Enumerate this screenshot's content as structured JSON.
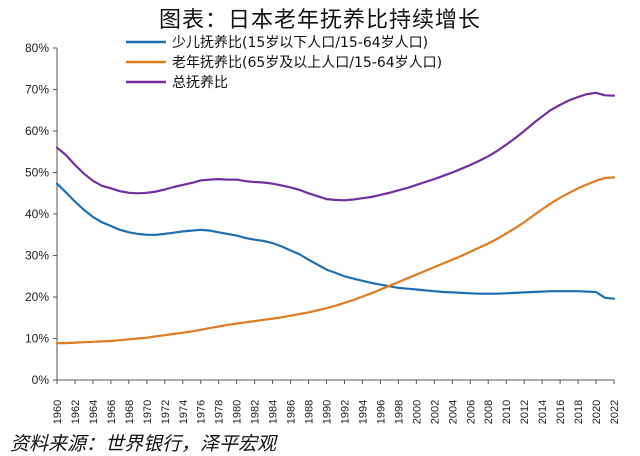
{
  "title": "图表：日本老年抚养比持续增长",
  "source": "资料来源：世界银行，泽平宏观",
  "chart_data": {
    "type": "line",
    "title": "图表：日本老年抚养比持续增长",
    "xlabel": "",
    "ylabel": "",
    "ylim": [
      0,
      80
    ],
    "yticks": [
      "0%",
      "10%",
      "20%",
      "30%",
      "40%",
      "50%",
      "60%",
      "70%",
      "80%"
    ],
    "xlim": [
      1960,
      2022
    ],
    "xticks": [
      "1960",
      "1962",
      "1964",
      "1966",
      "1968",
      "1970",
      "1972",
      "1974",
      "1976",
      "1978",
      "1980",
      "1982",
      "1984",
      "1986",
      "1988",
      "1990",
      "1992",
      "1994",
      "1996",
      "1998",
      "2000",
      "2002",
      "2004",
      "2006",
      "2008",
      "2010",
      "2012",
      "2014",
      "2016",
      "2018",
      "2020",
      "2022"
    ],
    "grid": false,
    "legend_position": "top-left",
    "x": [
      1960,
      1961,
      1962,
      1963,
      1964,
      1965,
      1966,
      1967,
      1968,
      1969,
      1970,
      1971,
      1972,
      1973,
      1974,
      1975,
      1976,
      1977,
      1978,
      1979,
      1980,
      1981,
      1982,
      1983,
      1984,
      1985,
      1986,
      1987,
      1988,
      1989,
      1990,
      1991,
      1992,
      1993,
      1994,
      1995,
      1996,
      1997,
      1998,
      1999,
      2000,
      2001,
      2002,
      2003,
      2004,
      2005,
      2006,
      2007,
      2008,
      2009,
      2010,
      2011,
      2012,
      2013,
      2014,
      2015,
      2016,
      2017,
      2018,
      2019,
      2020,
      2021,
      2022
    ],
    "series": [
      {
        "name": "少儿抚养比(15岁以下人口/15-64岁人口)",
        "color": "#1f6fb0",
        "values": [
          47.3,
          45.2,
          43.0,
          41.0,
          39.3,
          38.0,
          37.1,
          36.2,
          35.6,
          35.2,
          35.0,
          35.0,
          35.2,
          35.5,
          35.8,
          36.0,
          36.2,
          36.0,
          35.6,
          35.2,
          34.8,
          34.2,
          33.8,
          33.5,
          33.0,
          32.2,
          31.2,
          30.3,
          29.0,
          27.8,
          26.6,
          25.8,
          25.0,
          24.4,
          23.9,
          23.4,
          23.0,
          22.6,
          22.2,
          22.0,
          21.8,
          21.6,
          21.4,
          21.2,
          21.1,
          21.0,
          20.9,
          20.8,
          20.8,
          20.8,
          20.9,
          21.0,
          21.1,
          21.2,
          21.3,
          21.4,
          21.4,
          21.4,
          21.4,
          21.3,
          21.2,
          19.8,
          19.6
        ]
      },
      {
        "name": "老年抚养比(65岁及以上人口/15-64岁人口)",
        "color": "#e07b1f",
        "values": [
          8.9,
          8.9,
          9.0,
          9.1,
          9.2,
          9.3,
          9.4,
          9.6,
          9.8,
          10.0,
          10.2,
          10.5,
          10.8,
          11.1,
          11.4,
          11.7,
          12.1,
          12.5,
          12.9,
          13.3,
          13.6,
          13.9,
          14.2,
          14.5,
          14.8,
          15.1,
          15.5,
          15.9,
          16.3,
          16.8,
          17.3,
          17.9,
          18.6,
          19.3,
          20.1,
          20.9,
          21.8,
          22.7,
          23.6,
          24.5,
          25.4,
          26.3,
          27.2,
          28.1,
          29.0,
          29.9,
          30.9,
          31.9,
          32.9,
          34.0,
          35.3,
          36.6,
          38.0,
          39.6,
          41.1,
          42.6,
          43.9,
          45.1,
          46.2,
          47.1,
          48.0,
          48.7,
          48.8
        ]
      },
      {
        "name": "总抚养比",
        "color": "#7030a0",
        "values": [
          56.0,
          54.2,
          51.8,
          49.7,
          48.0,
          46.8,
          46.2,
          45.5,
          45.1,
          45.0,
          45.1,
          45.4,
          45.9,
          46.5,
          47.0,
          47.5,
          48.1,
          48.3,
          48.4,
          48.3,
          48.3,
          47.9,
          47.7,
          47.6,
          47.3,
          46.9,
          46.4,
          45.8,
          45.0,
          44.3,
          43.6,
          43.4,
          43.3,
          43.5,
          43.8,
          44.1,
          44.6,
          45.1,
          45.7,
          46.3,
          47.0,
          47.7,
          48.4,
          49.2,
          50.0,
          50.9,
          51.8,
          52.8,
          53.9,
          55.2,
          56.7,
          58.3,
          60.0,
          61.8,
          63.5,
          65.1,
          66.3,
          67.4,
          68.2,
          68.9,
          69.2,
          68.6,
          68.5
        ]
      }
    ]
  }
}
